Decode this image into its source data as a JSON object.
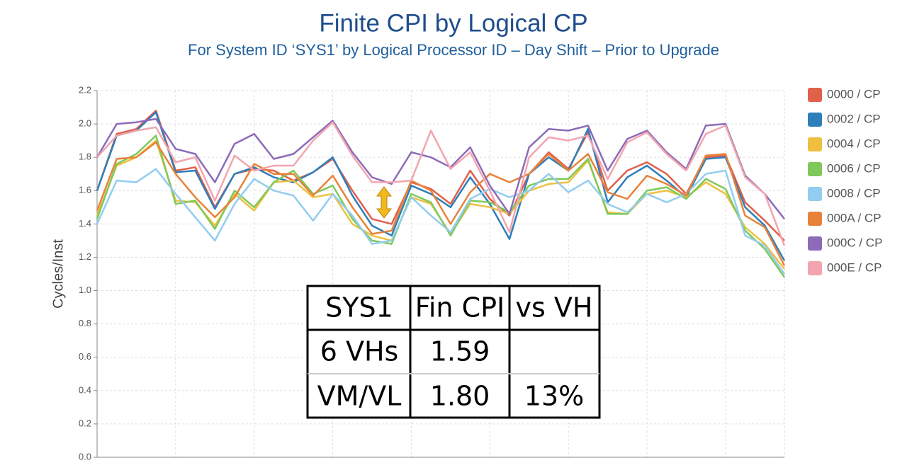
{
  "chart_data": {
    "type": "line",
    "title": "Finite CPI by Logical CP",
    "subtitle": "For System ID ‘SYS1’ by Logical Processor ID – Day Shift – Prior to Upgrade",
    "y_label": "Cycles/Inst",
    "ylim": [
      0,
      2.2
    ],
    "yticks": [
      {
        "value": 0,
        "label": "0.0"
      },
      0.2,
      0.4,
      0.6,
      0.8,
      {
        "value": 1,
        "label": "1.0"
      },
      1.2,
      1.4,
      1.6,
      1.8,
      {
        "value": 2,
        "label": "2.0"
      },
      2.2
    ],
    "grid": true,
    "legend": "right",
    "series": [
      {
        "name": "0000 / CP",
        "color": "#e0604a",
        "values": [
          1.6,
          1.94,
          1.97,
          2.08,
          1.72,
          1.74,
          1.5,
          1.7,
          1.73,
          1.72,
          1.66,
          1.71,
          1.79,
          1.6,
          1.43,
          1.4,
          1.65,
          1.61,
          1.52,
          1.72,
          1.55,
          1.45,
          1.7,
          1.83,
          1.73,
          1.95,
          1.6,
          1.72,
          1.77,
          1.7,
          1.58,
          1.8,
          1.81,
          1.53,
          1.42,
          1.3
        ]
      },
      {
        "name": "0002 / CP",
        "color": "#2f7ebc",
        "values": [
          1.6,
          1.93,
          1.96,
          2.07,
          1.71,
          1.72,
          1.49,
          1.7,
          1.74,
          1.68,
          1.65,
          1.71,
          1.8,
          1.57,
          1.39,
          1.33,
          1.63,
          1.58,
          1.5,
          1.68,
          1.52,
          1.31,
          1.7,
          1.8,
          1.72,
          1.97,
          1.53,
          1.68,
          1.75,
          1.66,
          1.56,
          1.79,
          1.8,
          1.5,
          1.39,
          1.18
        ]
      },
      {
        "name": "0004 / CP",
        "color": "#efc040",
        "values": [
          1.45,
          1.75,
          1.8,
          1.9,
          1.54,
          1.53,
          1.39,
          1.58,
          1.48,
          1.65,
          1.66,
          1.56,
          1.58,
          1.4,
          1.33,
          1.3,
          1.56,
          1.52,
          1.34,
          1.52,
          1.5,
          1.46,
          1.6,
          1.64,
          1.65,
          1.78,
          1.47,
          1.46,
          1.58,
          1.6,
          1.56,
          1.65,
          1.58,
          1.38,
          1.28,
          1.13
        ]
      },
      {
        "name": "0006 / CP",
        "color": "#7fc95a",
        "values": [
          1.43,
          1.76,
          1.82,
          1.93,
          1.52,
          1.54,
          1.37,
          1.6,
          1.5,
          1.65,
          1.72,
          1.58,
          1.63,
          1.43,
          1.3,
          1.28,
          1.58,
          1.53,
          1.33,
          1.54,
          1.53,
          1.47,
          1.63,
          1.67,
          1.67,
          1.79,
          1.46,
          1.46,
          1.6,
          1.62,
          1.55,
          1.67,
          1.61,
          1.36,
          1.25,
          1.08
        ]
      },
      {
        "name": "0008 / CP",
        "color": "#92cdf0",
        "values": [
          1.4,
          1.66,
          1.65,
          1.73,
          1.58,
          1.44,
          1.3,
          1.52,
          1.67,
          1.6,
          1.57,
          1.42,
          1.58,
          1.45,
          1.28,
          1.3,
          1.56,
          1.45,
          1.35,
          1.55,
          1.61,
          1.56,
          1.6,
          1.7,
          1.59,
          1.66,
          1.52,
          1.47,
          1.58,
          1.53,
          1.58,
          1.7,
          1.72,
          1.33,
          1.27,
          1.1
        ]
      },
      {
        "name": "000A / CP",
        "color": "#e8823a",
        "values": [
          1.48,
          1.79,
          1.8,
          1.89,
          1.7,
          1.56,
          1.44,
          1.56,
          1.76,
          1.7,
          1.7,
          1.57,
          1.69,
          1.5,
          1.34,
          1.36,
          1.66,
          1.6,
          1.4,
          1.59,
          1.7,
          1.65,
          1.7,
          1.82,
          1.72,
          1.82,
          1.59,
          1.55,
          1.69,
          1.64,
          1.57,
          1.81,
          1.82,
          1.45,
          1.38,
          1.15
        ]
      },
      {
        "name": "000C / CP",
        "color": "#8d6bb8",
        "values": [
          1.8,
          2.0,
          2.01,
          2.03,
          1.85,
          1.82,
          1.65,
          1.88,
          1.94,
          1.79,
          1.82,
          1.92,
          2.02,
          1.83,
          1.68,
          1.64,
          1.83,
          1.8,
          1.74,
          1.86,
          1.63,
          1.46,
          1.86,
          1.97,
          1.96,
          1.99,
          1.72,
          1.91,
          1.96,
          1.83,
          1.73,
          1.99,
          2.0,
          1.69,
          1.58,
          1.43
        ]
      },
      {
        "name": "000E / CP",
        "color": "#f2a5b0",
        "values": [
          1.8,
          1.93,
          1.96,
          1.98,
          1.77,
          1.8,
          1.54,
          1.81,
          1.72,
          1.75,
          1.75,
          1.9,
          2.01,
          1.81,
          1.65,
          1.65,
          1.66,
          1.96,
          1.73,
          1.83,
          1.6,
          1.35,
          1.8,
          1.92,
          1.9,
          1.93,
          1.67,
          1.89,
          1.95,
          1.82,
          1.72,
          1.94,
          1.99,
          1.68,
          1.58,
          1.27
        ]
      }
    ]
  },
  "table": {
    "header": [
      "SYS1",
      "Fin CPI",
      "vs VH"
    ],
    "rows": [
      [
        "6 VHs",
        "1.59",
        ""
      ],
      [
        "VM/VL",
        "1.80",
        "13%"
      ]
    ]
  }
}
